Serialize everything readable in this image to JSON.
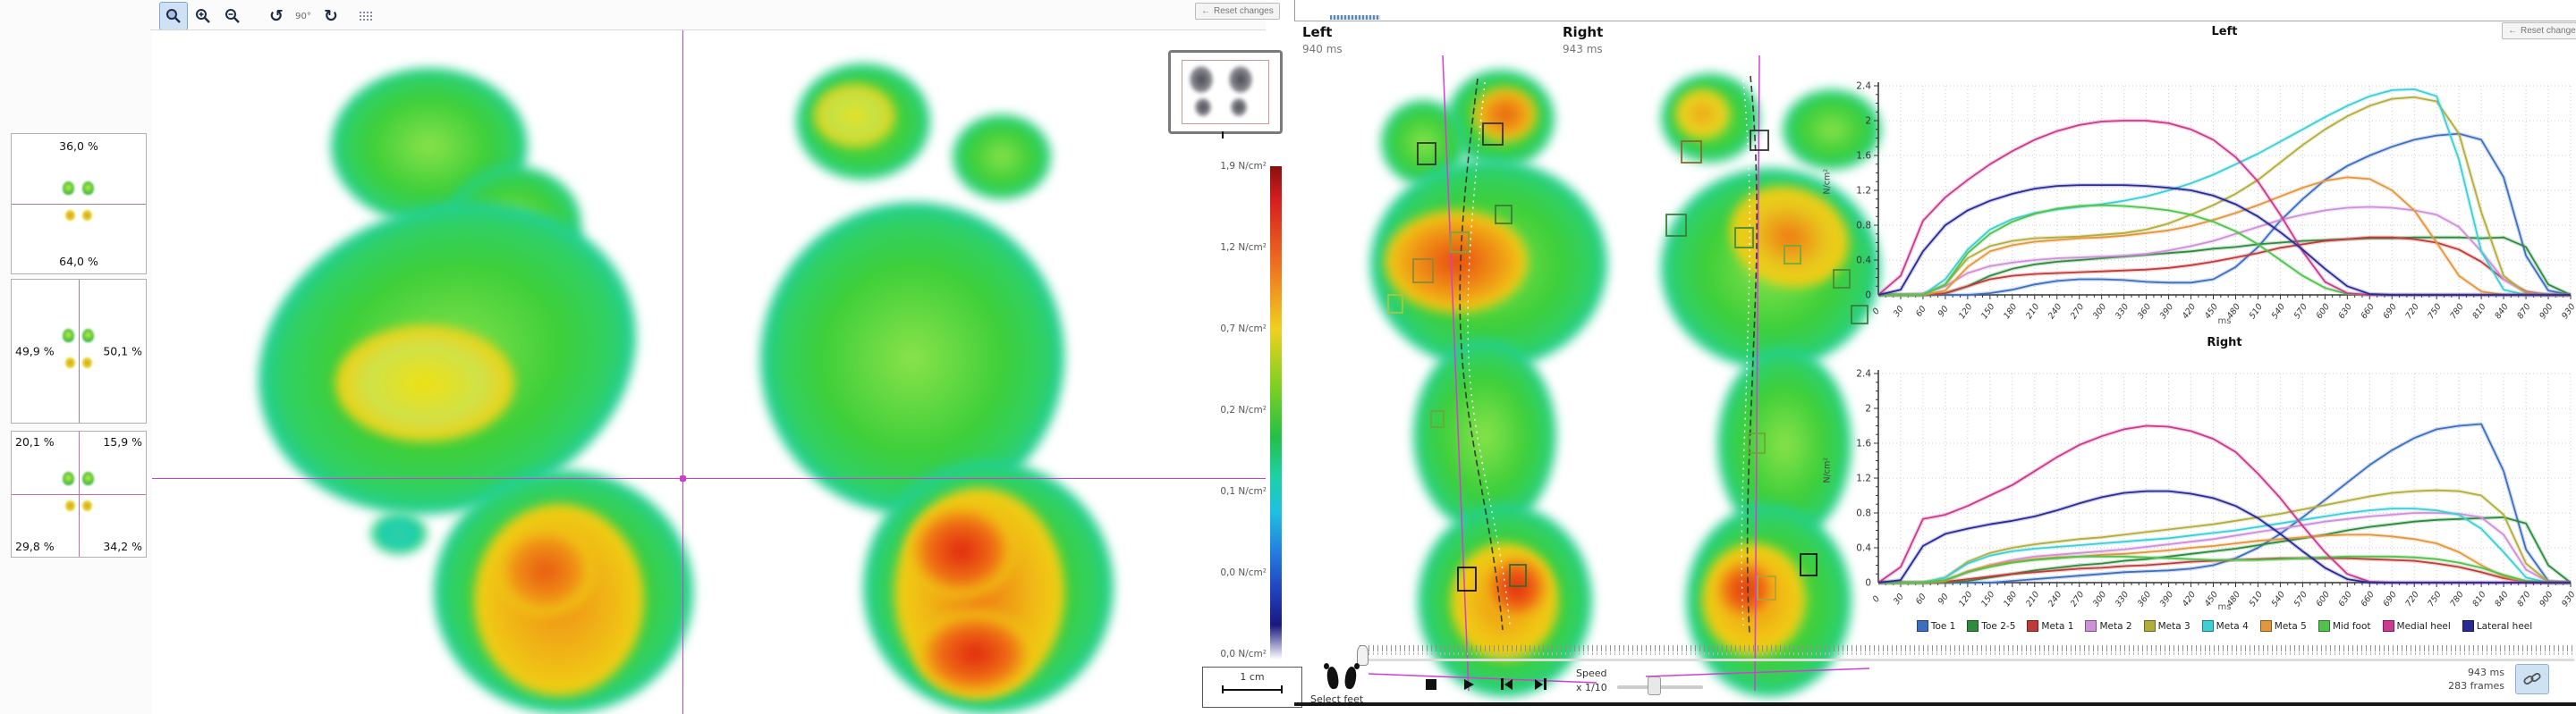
{
  "left_panel": {
    "toolbar": {
      "rotate_label": "90°"
    },
    "stats": {
      "box1": {
        "top": "36,0 %",
        "bottom": "64,0 %"
      },
      "box2": {
        "left": "49,9 %",
        "right": "50,1 %"
      },
      "box3": {
        "top_left": "20,1 %",
        "top_right": "15,9 %",
        "bottom_left": "29,8 %",
        "bottom_right": "34,2 %"
      }
    }
  },
  "right_panel": {
    "reset_button_label": "Reset changes",
    "left_foot": {
      "label": "Left",
      "time": "940 ms"
    },
    "right_foot": {
      "label": "Right",
      "time": "943 ms"
    },
    "scale_labels": [
      "1,9 N/cm²",
      "1,2 N/cm²",
      "0,7 N/cm²",
      "0,2 N/cm²",
      "0,1 N/cm²",
      "0,0 N/cm²",
      "0,0 N/cm²"
    ],
    "ruler_label": "1 cm",
    "controls": {
      "select_feet": "Select feet",
      "speed_label": "Speed",
      "speed_value": "x 1/10",
      "time": "943 ms",
      "frames": "283 frames"
    }
  },
  "icons": {
    "back_arrow": "←",
    "rotate_ccw": "↺",
    "rotate_cw": "↻",
    "zoom_plus": "+",
    "zoom_minus": "−"
  },
  "chart_data": [
    {
      "type": "line",
      "title": "Left",
      "xlabel": "ms",
      "ylabel": "N/cm²",
      "x": [
        0,
        30,
        60,
        90,
        120,
        150,
        180,
        210,
        240,
        270,
        300,
        330,
        360,
        390,
        420,
        450,
        480,
        510,
        540,
        570,
        600,
        630,
        660,
        690,
        720,
        750,
        780,
        810,
        840,
        870,
        900,
        930
      ],
      "ylim": [
        0,
        2.4
      ],
      "yticks": [
        0,
        0.4,
        0.8,
        1.2,
        1.6,
        2,
        2.4
      ],
      "grid": true,
      "legend_position": "bottom",
      "series": [
        {
          "name": "Toe 1",
          "color": "#3d6fc0",
          "values": [
            0,
            0,
            0,
            0,
            0,
            0.02,
            0.06,
            0.12,
            0.16,
            0.18,
            0.18,
            0.17,
            0.15,
            0.14,
            0.14,
            0.18,
            0.32,
            0.55,
            0.85,
            1.1,
            1.32,
            1.48,
            1.6,
            1.7,
            1.78,
            1.83,
            1.85,
            1.78,
            1.35,
            0.45,
            0.05,
            0
          ]
        },
        {
          "name": "Toe 2-5",
          "color": "#2e8b3e",
          "values": [
            0,
            0,
            0,
            0.02,
            0.1,
            0.22,
            0.3,
            0.35,
            0.38,
            0.4,
            0.42,
            0.44,
            0.46,
            0.48,
            0.5,
            0.53,
            0.55,
            0.58,
            0.6,
            0.62,
            0.63,
            0.64,
            0.65,
            0.65,
            0.66,
            0.66,
            0.66,
            0.65,
            0.66,
            0.55,
            0.12,
            0
          ]
        },
        {
          "name": "Meta 1",
          "color": "#c03a3a",
          "values": [
            0,
            0,
            0,
            0.02,
            0.1,
            0.18,
            0.22,
            0.24,
            0.25,
            0.26,
            0.27,
            0.28,
            0.29,
            0.31,
            0.34,
            0.38,
            0.43,
            0.48,
            0.54,
            0.58,
            0.62,
            0.64,
            0.66,
            0.66,
            0.64,
            0.6,
            0.52,
            0.38,
            0.18,
            0.04,
            0,
            0
          ]
        },
        {
          "name": "Meta 2",
          "color": "#cf8fdb",
          "values": [
            0,
            0,
            0.02,
            0.1,
            0.25,
            0.33,
            0.37,
            0.4,
            0.42,
            0.43,
            0.44,
            0.45,
            0.47,
            0.51,
            0.56,
            0.62,
            0.7,
            0.78,
            0.86,
            0.92,
            0.97,
            1.0,
            1.01,
            1.0,
            0.97,
            0.92,
            0.78,
            0.5,
            0.18,
            0.03,
            0,
            0
          ]
        },
        {
          "name": "Meta 3",
          "color": "#b3ad3d",
          "values": [
            0,
            0,
            0,
            0.12,
            0.42,
            0.56,
            0.62,
            0.65,
            0.66,
            0.67,
            0.69,
            0.71,
            0.75,
            0.82,
            0.92,
            1.03,
            1.16,
            1.32,
            1.52,
            1.72,
            1.9,
            2.05,
            2.17,
            2.25,
            2.27,
            2.22,
            1.85,
            0.95,
            0.22,
            0.02,
            0,
            0
          ]
        },
        {
          "name": "Meta 4",
          "color": "#3ecfd6",
          "values": [
            0,
            0,
            0,
            0.18,
            0.52,
            0.75,
            0.87,
            0.94,
            0.98,
            1.01,
            1.04,
            1.08,
            1.13,
            1.2,
            1.28,
            1.38,
            1.5,
            1.62,
            1.76,
            1.9,
            2.04,
            2.17,
            2.28,
            2.35,
            2.36,
            2.28,
            1.55,
            0.5,
            0.06,
            0,
            0,
            0
          ]
        },
        {
          "name": "Meta 5",
          "color": "#e2973c",
          "values": [
            0,
            0,
            0,
            0.05,
            0.32,
            0.5,
            0.57,
            0.61,
            0.63,
            0.65,
            0.66,
            0.68,
            0.71,
            0.74,
            0.79,
            0.86,
            0.94,
            1.03,
            1.13,
            1.23,
            1.31,
            1.35,
            1.33,
            1.2,
            0.97,
            0.6,
            0.22,
            0.04,
            0,
            0,
            0,
            0
          ]
        },
        {
          "name": "Mid foot",
          "color": "#52c24e",
          "values": [
            0,
            0,
            0,
            0.12,
            0.48,
            0.7,
            0.84,
            0.93,
            0.99,
            1.02,
            1.03,
            1.02,
            1.0,
            0.97,
            0.92,
            0.84,
            0.73,
            0.58,
            0.4,
            0.22,
            0.08,
            0.01,
            0,
            0,
            0,
            0,
            0,
            0,
            0,
            0,
            0,
            0
          ]
        },
        {
          "name": "Medial heel",
          "color": "#cb3a8e",
          "values": [
            0,
            0.22,
            0.85,
            1.12,
            1.32,
            1.5,
            1.65,
            1.78,
            1.88,
            1.95,
            1.99,
            2.0,
            2.0,
            1.97,
            1.9,
            1.78,
            1.58,
            1.3,
            0.92,
            0.5,
            0.15,
            0.02,
            0,
            0,
            0,
            0,
            0,
            0,
            0,
            0,
            0,
            0
          ]
        },
        {
          "name": "Lateral heel",
          "color": "#2a2a96",
          "values": [
            0,
            0.06,
            0.5,
            0.8,
            0.97,
            1.08,
            1.16,
            1.22,
            1.25,
            1.26,
            1.26,
            1.26,
            1.25,
            1.23,
            1.2,
            1.14,
            1.04,
            0.9,
            0.72,
            0.52,
            0.3,
            0.1,
            0.01,
            0,
            0,
            0,
            0,
            0,
            0,
            0,
            0,
            0
          ]
        }
      ]
    },
    {
      "type": "line",
      "title": "Right",
      "xlabel": "ms",
      "ylabel": "N/cm²",
      "x": [
        0,
        30,
        60,
        90,
        120,
        150,
        180,
        210,
        240,
        270,
        300,
        330,
        360,
        390,
        420,
        450,
        480,
        510,
        540,
        570,
        600,
        630,
        660,
        690,
        720,
        750,
        780,
        810,
        840,
        870,
        900,
        930
      ],
      "ylim": [
        0,
        2.4
      ],
      "yticks": [
        0,
        0.4,
        0.8,
        1.2,
        1.6,
        2,
        2.4
      ],
      "grid": true,
      "legend_position": "bottom",
      "series": [
        {
          "name": "Toe 1",
          "color": "#3d6fc0",
          "values": [
            0,
            0,
            0,
            0,
            0,
            0,
            0.02,
            0.04,
            0.06,
            0.08,
            0.1,
            0.12,
            0.13,
            0.14,
            0.16,
            0.2,
            0.28,
            0.4,
            0.56,
            0.75,
            0.95,
            1.15,
            1.35,
            1.52,
            1.66,
            1.76,
            1.8,
            1.82,
            1.28,
            0.38,
            0.02,
            0
          ]
        },
        {
          "name": "Toe 2-5",
          "color": "#2e8b3e",
          "values": [
            0,
            0,
            0,
            0,
            0.02,
            0.06,
            0.1,
            0.14,
            0.17,
            0.2,
            0.22,
            0.25,
            0.27,
            0.3,
            0.33,
            0.36,
            0.39,
            0.43,
            0.47,
            0.51,
            0.55,
            0.6,
            0.64,
            0.67,
            0.7,
            0.72,
            0.73,
            0.74,
            0.75,
            0.68,
            0.2,
            0
          ]
        },
        {
          "name": "Meta 1",
          "color": "#c03a3a",
          "values": [
            0,
            0,
            0,
            0.01,
            0.04,
            0.07,
            0.1,
            0.12,
            0.14,
            0.16,
            0.17,
            0.19,
            0.2,
            0.22,
            0.24,
            0.25,
            0.26,
            0.27,
            0.28,
            0.28,
            0.28,
            0.28,
            0.27,
            0.26,
            0.25,
            0.22,
            0.18,
            0.12,
            0.05,
            0.01,
            0,
            0
          ]
        },
        {
          "name": "Meta 2",
          "color": "#cf8fdb",
          "values": [
            0,
            0,
            0,
            0.03,
            0.12,
            0.2,
            0.26,
            0.3,
            0.32,
            0.34,
            0.36,
            0.38,
            0.41,
            0.44,
            0.47,
            0.5,
            0.54,
            0.58,
            0.62,
            0.66,
            0.7,
            0.73,
            0.76,
            0.78,
            0.8,
            0.8,
            0.79,
            0.75,
            0.55,
            0.15,
            0.01,
            0
          ]
        },
        {
          "name": "Meta 3",
          "color": "#b3ad3d",
          "values": [
            0,
            0,
            0,
            0.06,
            0.24,
            0.34,
            0.4,
            0.44,
            0.47,
            0.5,
            0.52,
            0.55,
            0.58,
            0.61,
            0.64,
            0.67,
            0.71,
            0.75,
            0.79,
            0.84,
            0.89,
            0.94,
            0.99,
            1.03,
            1.05,
            1.06,
            1.05,
            1.0,
            0.78,
            0.22,
            0.01,
            0
          ]
        },
        {
          "name": "Meta 4",
          "color": "#3ecfd6",
          "values": [
            0,
            0,
            0,
            0.06,
            0.22,
            0.31,
            0.36,
            0.39,
            0.41,
            0.43,
            0.45,
            0.47,
            0.49,
            0.51,
            0.54,
            0.57,
            0.6,
            0.64,
            0.68,
            0.72,
            0.76,
            0.8,
            0.83,
            0.85,
            0.85,
            0.83,
            0.78,
            0.62,
            0.35,
            0.06,
            0,
            0
          ]
        },
        {
          "name": "Meta 5",
          "color": "#e2973c",
          "values": [
            0,
            0,
            0,
            0.02,
            0.13,
            0.2,
            0.24,
            0.27,
            0.29,
            0.3,
            0.32,
            0.33,
            0.35,
            0.37,
            0.4,
            0.42,
            0.45,
            0.48,
            0.5,
            0.52,
            0.54,
            0.55,
            0.55,
            0.53,
            0.5,
            0.45,
            0.35,
            0.2,
            0.07,
            0.01,
            0,
            0
          ]
        },
        {
          "name": "Mid foot",
          "color": "#52c24e",
          "values": [
            0,
            0,
            0,
            0.03,
            0.12,
            0.18,
            0.23,
            0.26,
            0.28,
            0.3,
            0.3,
            0.3,
            0.29,
            0.28,
            0.27,
            0.26,
            0.26,
            0.26,
            0.27,
            0.28,
            0.29,
            0.3,
            0.3,
            0.3,
            0.29,
            0.27,
            0.23,
            0.17,
            0.09,
            0.02,
            0,
            0
          ]
        },
        {
          "name": "Medial heel",
          "color": "#cb3a8e",
          "values": [
            0,
            0.18,
            0.73,
            0.78,
            0.88,
            1.0,
            1.12,
            1.28,
            1.44,
            1.58,
            1.68,
            1.76,
            1.8,
            1.79,
            1.74,
            1.65,
            1.5,
            1.25,
            0.97,
            0.65,
            0.35,
            0.1,
            0.01,
            0,
            0,
            0,
            0,
            0,
            0,
            0,
            0,
            0
          ]
        },
        {
          "name": "Lateral heel",
          "color": "#2a2a96",
          "values": [
            0,
            0.03,
            0.42,
            0.56,
            0.62,
            0.67,
            0.71,
            0.76,
            0.83,
            0.91,
            0.98,
            1.03,
            1.05,
            1.05,
            1.02,
            0.97,
            0.88,
            0.74,
            0.56,
            0.36,
            0.17,
            0.04,
            0,
            0,
            0,
            0,
            0,
            0,
            0,
            0,
            0,
            0
          ]
        }
      ]
    }
  ]
}
